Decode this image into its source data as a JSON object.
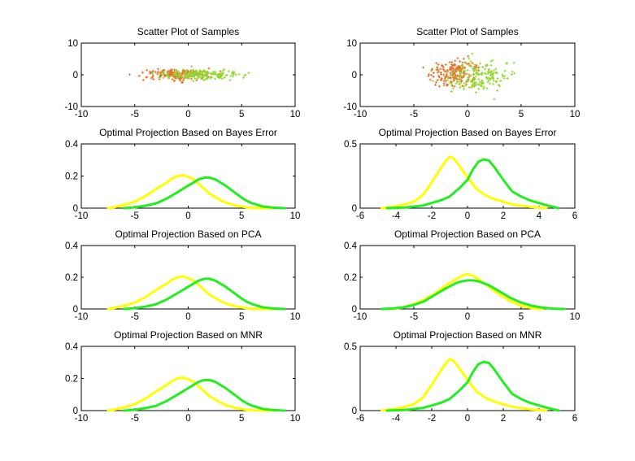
{
  "chart_data": [
    {
      "type": "scatter",
      "title": "Scatter Plot of Samples",
      "xlim": [
        -10,
        10
      ],
      "ylim": [
        -10,
        10
      ],
      "xticks": [
        -10,
        -5,
        0,
        5,
        10
      ],
      "yticks": [
        -10,
        0,
        10
      ],
      "series": [
        {
          "color": "#e07020",
          "cx": -1.2,
          "cy": 0,
          "sx": 1.6,
          "sy": 0.8,
          "n": 170
        },
        {
          "color": "#8fd62a",
          "cx": 1.0,
          "cy": 0,
          "sx": 1.9,
          "sy": 0.8,
          "n": 170
        }
      ]
    },
    {
      "type": "scatter",
      "title": "Scatter Plot of Samples",
      "xlim": [
        -10,
        10
      ],
      "ylim": [
        -10,
        10
      ],
      "xticks": [
        -10,
        -5,
        0,
        5,
        10
      ],
      "yticks": [
        -10,
        0,
        10
      ],
      "series": [
        {
          "color": "#e07020",
          "cx": -1.2,
          "cy": 0.8,
          "sx": 1.1,
          "sy": 2.2,
          "n": 170
        },
        {
          "color": "#8fd62a",
          "cx": 1.0,
          "cy": -0.4,
          "sx": 1.2,
          "sy": 2.4,
          "n": 170
        }
      ]
    },
    {
      "type": "line",
      "title": "Optimal Projection Based on Bayes Error",
      "xlim": [
        -10,
        10
      ],
      "ylim": [
        0,
        0.4
      ],
      "xticks": [
        -10,
        -5,
        0,
        5,
        10
      ],
      "yticks": [
        0,
        0.2,
        0.4
      ],
      "series": [
        {
          "color": "#ffff00",
          "x": [
            -7.5,
            -7,
            -6,
            -5,
            -4,
            -3,
            -2,
            -1.5,
            -1,
            -0.5,
            0,
            0.5,
            1,
            1.5,
            2,
            2.5,
            3,
            3.5,
            4,
            4.5,
            5,
            5.5,
            6,
            7,
            8
          ],
          "y": [
            0.0,
            0.005,
            0.02,
            0.04,
            0.075,
            0.12,
            0.16,
            0.185,
            0.2,
            0.205,
            0.195,
            0.18,
            0.15,
            0.12,
            0.09,
            0.07,
            0.05,
            0.035,
            0.025,
            0.015,
            0.01,
            0.005,
            0.002,
            0.0,
            0.0
          ]
        },
        {
          "color": "#22ee22",
          "x": [
            -6,
            -5,
            -4,
            -3,
            -2,
            -1,
            0,
            0.5,
            1,
            1.5,
            2,
            2.5,
            3,
            3.5,
            4,
            4.5,
            5,
            5.5,
            6,
            7,
            8,
            9
          ],
          "y": [
            0.0,
            0.005,
            0.015,
            0.03,
            0.06,
            0.1,
            0.14,
            0.16,
            0.18,
            0.19,
            0.19,
            0.18,
            0.16,
            0.14,
            0.115,
            0.09,
            0.065,
            0.045,
            0.03,
            0.01,
            0.003,
            0.0
          ]
        }
      ]
    },
    {
      "type": "line",
      "title": "Optimal Projection Based on Bayes Error",
      "xlim": [
        -6,
        6
      ],
      "ylim": [
        0,
        0.5
      ],
      "xticks": [
        -6,
        -4,
        -2,
        0,
        2,
        4,
        6
      ],
      "yticks": [
        0,
        0.5
      ],
      "series": [
        {
          "color": "#ffff00",
          "x": [
            -4.8,
            -4.2,
            -3.8,
            -3.5,
            -3,
            -2.5,
            -2,
            -1.5,
            -1.2,
            -1,
            -0.8,
            -0.5,
            0,
            0.5,
            1,
            1.5,
            2,
            2.5,
            3,
            3.5,
            4,
            4.4
          ],
          "y": [
            0.0,
            0.01,
            0.02,
            0.03,
            0.05,
            0.1,
            0.2,
            0.31,
            0.37,
            0.4,
            0.39,
            0.34,
            0.24,
            0.15,
            0.1,
            0.07,
            0.05,
            0.03,
            0.02,
            0.01,
            0.005,
            0.0
          ]
        },
        {
          "color": "#22ee22",
          "x": [
            -4.5,
            -3.5,
            -2.5,
            -2,
            -1.5,
            -1,
            -0.5,
            0,
            0.3,
            0.6,
            0.9,
            1.2,
            1.5,
            2,
            2.5,
            3,
            3.5,
            4,
            4.5,
            5.1
          ],
          "y": [
            0.0,
            0.005,
            0.02,
            0.04,
            0.06,
            0.09,
            0.15,
            0.22,
            0.3,
            0.36,
            0.38,
            0.37,
            0.32,
            0.22,
            0.13,
            0.09,
            0.06,
            0.04,
            0.02,
            0.0
          ]
        }
      ]
    },
    {
      "type": "line",
      "title": "Optimal Projection Based on PCA",
      "xlim": [
        -10,
        10
      ],
      "ylim": [
        0,
        0.4
      ],
      "xticks": [
        -10,
        -5,
        0,
        5,
        10
      ],
      "yticks": [
        0,
        0.2,
        0.4
      ],
      "series": [
        {
          "color": "#ffff00",
          "x": [
            -7.5,
            -7,
            -6,
            -5,
            -4,
            -3,
            -2,
            -1.5,
            -1,
            -0.5,
            0,
            0.5,
            1,
            1.5,
            2,
            2.5,
            3,
            3.5,
            4,
            4.5,
            5,
            5.5,
            6,
            7,
            8
          ],
          "y": [
            0.0,
            0.005,
            0.02,
            0.04,
            0.075,
            0.12,
            0.16,
            0.185,
            0.2,
            0.205,
            0.195,
            0.18,
            0.15,
            0.12,
            0.09,
            0.07,
            0.05,
            0.035,
            0.025,
            0.015,
            0.01,
            0.005,
            0.002,
            0.0,
            0.0
          ]
        },
        {
          "color": "#22ee22",
          "x": [
            -6,
            -5,
            -4,
            -3,
            -2,
            -1,
            0,
            0.5,
            1,
            1.5,
            2,
            2.5,
            3,
            3.5,
            4,
            4.5,
            5,
            5.5,
            6,
            7,
            8,
            9
          ],
          "y": [
            0.0,
            0.005,
            0.015,
            0.03,
            0.06,
            0.1,
            0.14,
            0.16,
            0.18,
            0.19,
            0.19,
            0.18,
            0.16,
            0.14,
            0.115,
            0.09,
            0.065,
            0.045,
            0.03,
            0.01,
            0.003,
            0.0
          ]
        }
      ]
    },
    {
      "type": "line",
      "title": "Optimal Projection Based on PCA",
      "xlim": [
        -10,
        10
      ],
      "ylim": [
        0,
        0.4
      ],
      "xticks": [
        -10,
        -5,
        0,
        5,
        10
      ],
      "yticks": [
        0,
        0.2,
        0.4
      ],
      "series": [
        {
          "color": "#ffff00",
          "x": [
            -7,
            -6,
            -5,
            -4,
            -3,
            -2,
            -1,
            -0.5,
            0,
            0.5,
            1,
            2,
            3,
            4,
            5,
            6,
            7
          ],
          "y": [
            0.0,
            0.01,
            0.03,
            0.06,
            0.1,
            0.15,
            0.19,
            0.21,
            0.22,
            0.21,
            0.19,
            0.14,
            0.09,
            0.05,
            0.02,
            0.005,
            0.0
          ]
        },
        {
          "color": "#22ee22",
          "x": [
            -8,
            -7,
            -6,
            -5,
            -4,
            -3,
            -2,
            -1,
            -0.5,
            0,
            0.5,
            1,
            2,
            3,
            4,
            5,
            6,
            7,
            8,
            9
          ],
          "y": [
            0.0,
            0.003,
            0.01,
            0.025,
            0.05,
            0.09,
            0.13,
            0.165,
            0.175,
            0.18,
            0.18,
            0.175,
            0.15,
            0.11,
            0.07,
            0.04,
            0.02,
            0.008,
            0.002,
            0.0
          ]
        }
      ]
    },
    {
      "type": "line",
      "title": "Optimal Projection Based on MNR",
      "xlim": [
        -10,
        10
      ],
      "ylim": [
        0,
        0.4
      ],
      "xticks": [
        -10,
        -5,
        0,
        5,
        10
      ],
      "yticks": [
        0,
        0.2,
        0.4
      ],
      "series": [
        {
          "color": "#ffff00",
          "x": [
            -7.5,
            -7,
            -6,
            -5,
            -4,
            -3,
            -2,
            -1.5,
            -1,
            -0.5,
            0,
            0.5,
            1,
            1.5,
            2,
            2.5,
            3,
            3.5,
            4,
            4.5,
            5,
            5.5,
            6,
            7,
            8
          ],
          "y": [
            0.0,
            0.005,
            0.02,
            0.04,
            0.075,
            0.12,
            0.16,
            0.185,
            0.2,
            0.205,
            0.195,
            0.18,
            0.15,
            0.12,
            0.09,
            0.07,
            0.05,
            0.035,
            0.025,
            0.015,
            0.01,
            0.005,
            0.002,
            0.0,
            0.0
          ]
        },
        {
          "color": "#22ee22",
          "x": [
            -6,
            -5,
            -4,
            -3,
            -2,
            -1,
            0,
            0.5,
            1,
            1.5,
            2,
            2.5,
            3,
            3.5,
            4,
            4.5,
            5,
            5.5,
            6,
            7,
            8,
            9
          ],
          "y": [
            0.0,
            0.005,
            0.015,
            0.03,
            0.06,
            0.1,
            0.14,
            0.16,
            0.18,
            0.19,
            0.19,
            0.18,
            0.16,
            0.14,
            0.115,
            0.09,
            0.065,
            0.045,
            0.03,
            0.01,
            0.003,
            0.0
          ]
        }
      ]
    },
    {
      "type": "line",
      "title": "Optimal Projection Based on MNR",
      "xlim": [
        -6,
        6
      ],
      "ylim": [
        0,
        0.5
      ],
      "xticks": [
        -6,
        -4,
        -2,
        0,
        2,
        4,
        6
      ],
      "yticks": [
        0,
        0.5
      ],
      "series": [
        {
          "color": "#ffff00",
          "x": [
            -4.8,
            -4.2,
            -3.8,
            -3.5,
            -3,
            -2.5,
            -2,
            -1.5,
            -1.2,
            -1,
            -0.8,
            -0.5,
            0,
            0.5,
            1,
            1.5,
            2,
            2.5,
            3,
            3.5,
            4,
            4.4
          ],
          "y": [
            0.0,
            0.01,
            0.02,
            0.03,
            0.05,
            0.1,
            0.2,
            0.31,
            0.37,
            0.4,
            0.39,
            0.34,
            0.24,
            0.15,
            0.1,
            0.07,
            0.05,
            0.03,
            0.02,
            0.01,
            0.005,
            0.0
          ]
        },
        {
          "color": "#22ee22",
          "x": [
            -4.5,
            -3.5,
            -2.5,
            -2,
            -1.5,
            -1,
            -0.5,
            0,
            0.3,
            0.6,
            0.9,
            1.2,
            1.5,
            2,
            2.5,
            3,
            3.5,
            4,
            4.5,
            5.1
          ],
          "y": [
            0.0,
            0.005,
            0.02,
            0.04,
            0.06,
            0.09,
            0.15,
            0.22,
            0.3,
            0.36,
            0.38,
            0.37,
            0.32,
            0.22,
            0.13,
            0.09,
            0.06,
            0.04,
            0.02,
            0.0
          ]
        }
      ]
    }
  ]
}
